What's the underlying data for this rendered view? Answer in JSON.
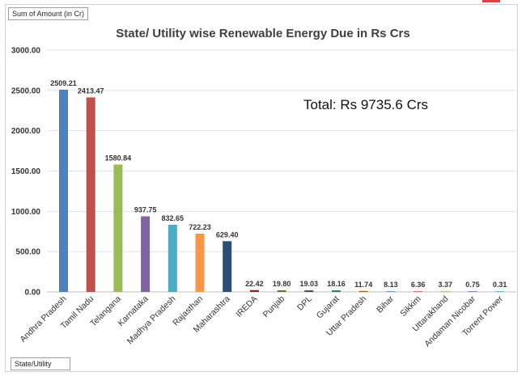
{
  "pivot_fields": {
    "values_field": "Sum of Amount (in Cr)",
    "axis_field": "State/Utility"
  },
  "chart_data": {
    "type": "bar",
    "title": "State/ Utility  wise  Renewable Energy Due in Rs Crs",
    "annotation": "Total: Rs 9735.6 Crs",
    "xlabel": "",
    "ylabel": "",
    "ylim": [
      0,
      3000
    ],
    "yticks": [
      "0.00",
      "500.00",
      "1000.00",
      "1500.00",
      "2000.00",
      "2500.00",
      "3000.00"
    ],
    "grid": true,
    "categories": [
      "Andhra Pradesh",
      "Tamil Nadu",
      "Telangana",
      "Karnataka",
      "Madhya Pradesh",
      "Rajasthan",
      "Maharashtra",
      "IREDA",
      "Punjab",
      "DPL",
      "Gujarat",
      "Uttar Pradesh",
      "Bihar",
      "Sikkim",
      "Uttarakhand",
      "Andaman Nicobar",
      "Torrent Power"
    ],
    "values": [
      2509.21,
      2413.47,
      1580.84,
      937.75,
      832.65,
      722.23,
      629.4,
      22.42,
      19.8,
      19.03,
      18.16,
      11.74,
      8.13,
      6.36,
      3.37,
      0.75,
      0.31
    ],
    "data_labels": [
      "2509.21",
      "2413.47",
      "1580.84",
      "937.75",
      "832.65",
      "722.23",
      "629.40",
      "22.42",
      "19.80",
      "19.03",
      "18.16",
      "11.74",
      "8.13",
      "6.36",
      "3.37",
      "0.75",
      "0.31"
    ],
    "colors": [
      "#4f81bd",
      "#c0504d",
      "#9bbb59",
      "#8064a2",
      "#4bacc6",
      "#f79646",
      "#2c4d75",
      "#772c2a",
      "#5f7530",
      "#4d3b62",
      "#276a7c",
      "#b65708",
      "#729aca",
      "#cd7371",
      "#afc97a",
      "#9983b5",
      "#6fbdd1"
    ]
  }
}
